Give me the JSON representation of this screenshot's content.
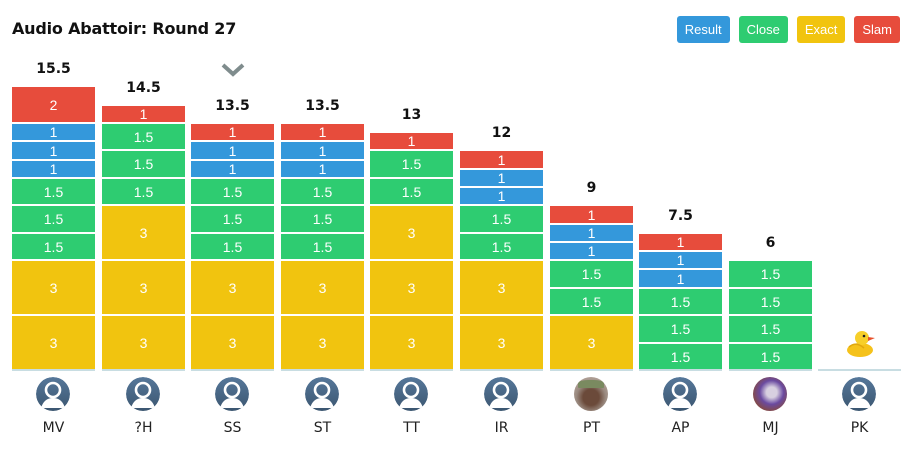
{
  "header": {
    "title": "Audio Abattoir: Round 27"
  },
  "colors": {
    "result": "#3498db",
    "close": "#2ecc71",
    "exact": "#f1c40f",
    "slam": "#e74c3c",
    "chevron": "#7f8c8d",
    "avatar": "#4a6785"
  },
  "legend": [
    {
      "key": "result",
      "label": "Result"
    },
    {
      "key": "close",
      "label": "Close"
    },
    {
      "key": "exact",
      "label": "Exact"
    },
    {
      "key": "slam",
      "label": "Slam"
    }
  ],
  "chart_data": {
    "type": "bar",
    "stacked": true,
    "title": "Audio Abattoir: Round 27",
    "categories": [
      "MV",
      "?H",
      "SS",
      "ST",
      "TT",
      "IR",
      "PT",
      "AP",
      "MJ",
      "PK"
    ],
    "totals": [
      "15.5",
      "14.5",
      "13.5",
      "13.5",
      "13",
      "12",
      "9",
      "7.5",
      "6",
      ""
    ],
    "selected": "SS",
    "empty_marker": "PK",
    "players": [
      {
        "name": "MV",
        "total": "15.5",
        "avatar": "default",
        "blocks": [
          {
            "type": "exact",
            "value": "3"
          },
          {
            "type": "exact",
            "value": "3"
          },
          {
            "type": "close",
            "value": "1.5"
          },
          {
            "type": "close",
            "value": "1.5"
          },
          {
            "type": "close",
            "value": "1.5"
          },
          {
            "type": "result",
            "value": "1"
          },
          {
            "type": "result",
            "value": "1"
          },
          {
            "type": "result",
            "value": "1"
          },
          {
            "type": "slam",
            "value": "2"
          }
        ]
      },
      {
        "name": "?H",
        "total": "14.5",
        "avatar": "default",
        "blocks": [
          {
            "type": "exact",
            "value": "3"
          },
          {
            "type": "exact",
            "value": "3"
          },
          {
            "type": "exact",
            "value": "3"
          },
          {
            "type": "close",
            "value": "1.5"
          },
          {
            "type": "close",
            "value": "1.5"
          },
          {
            "type": "close",
            "value": "1.5"
          },
          {
            "type": "slam",
            "value": "1"
          }
        ]
      },
      {
        "name": "SS",
        "total": "13.5",
        "avatar": "default",
        "blocks": [
          {
            "type": "exact",
            "value": "3"
          },
          {
            "type": "exact",
            "value": "3"
          },
          {
            "type": "close",
            "value": "1.5"
          },
          {
            "type": "close",
            "value": "1.5"
          },
          {
            "type": "close",
            "value": "1.5"
          },
          {
            "type": "result",
            "value": "1"
          },
          {
            "type": "result",
            "value": "1"
          },
          {
            "type": "slam",
            "value": "1"
          }
        ]
      },
      {
        "name": "ST",
        "total": "13.5",
        "avatar": "default",
        "blocks": [
          {
            "type": "exact",
            "value": "3"
          },
          {
            "type": "exact",
            "value": "3"
          },
          {
            "type": "close",
            "value": "1.5"
          },
          {
            "type": "close",
            "value": "1.5"
          },
          {
            "type": "close",
            "value": "1.5"
          },
          {
            "type": "result",
            "value": "1"
          },
          {
            "type": "result",
            "value": "1"
          },
          {
            "type": "slam",
            "value": "1"
          }
        ]
      },
      {
        "name": "TT",
        "total": "13",
        "avatar": "default",
        "blocks": [
          {
            "type": "exact",
            "value": "3"
          },
          {
            "type": "exact",
            "value": "3"
          },
          {
            "type": "exact",
            "value": "3"
          },
          {
            "type": "close",
            "value": "1.5"
          },
          {
            "type": "close",
            "value": "1.5"
          },
          {
            "type": "slam",
            "value": "1"
          }
        ]
      },
      {
        "name": "IR",
        "total": "12",
        "avatar": "default",
        "blocks": [
          {
            "type": "exact",
            "value": "3"
          },
          {
            "type": "exact",
            "value": "3"
          },
          {
            "type": "close",
            "value": "1.5"
          },
          {
            "type": "close",
            "value": "1.5"
          },
          {
            "type": "result",
            "value": "1"
          },
          {
            "type": "result",
            "value": "1"
          },
          {
            "type": "slam",
            "value": "1"
          }
        ]
      },
      {
        "name": "PT",
        "total": "9",
        "avatar": "photo",
        "blocks": [
          {
            "type": "exact",
            "value": "3"
          },
          {
            "type": "close",
            "value": "1.5"
          },
          {
            "type": "close",
            "value": "1.5"
          },
          {
            "type": "result",
            "value": "1"
          },
          {
            "type": "result",
            "value": "1"
          },
          {
            "type": "slam",
            "value": "1"
          }
        ]
      },
      {
        "name": "AP",
        "total": "7.5",
        "avatar": "default",
        "blocks": [
          {
            "type": "close",
            "value": "1.5"
          },
          {
            "type": "close",
            "value": "1.5"
          },
          {
            "type": "close",
            "value": "1.5"
          },
          {
            "type": "result",
            "value": "1"
          },
          {
            "type": "result",
            "value": "1"
          },
          {
            "type": "slam",
            "value": "1"
          }
        ]
      },
      {
        "name": "MJ",
        "total": "6",
        "avatar": "photo2",
        "blocks": [
          {
            "type": "close",
            "value": "1.5"
          },
          {
            "type": "close",
            "value": "1.5"
          },
          {
            "type": "close",
            "value": "1.5"
          },
          {
            "type": "close",
            "value": "1.5"
          }
        ]
      },
      {
        "name": "PK",
        "total": "",
        "avatar": "default",
        "blocks": []
      }
    ]
  },
  "icons": {
    "selected_marker": "chevron-down-icon",
    "empty_marker": "rubber-duck-icon",
    "avatar_default": "user-avatar-icon"
  }
}
